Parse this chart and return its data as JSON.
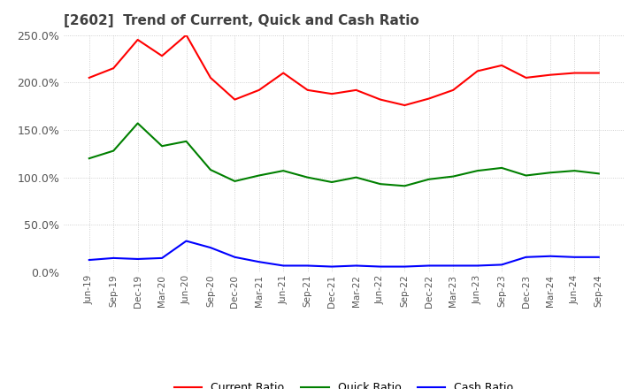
{
  "title": "[2602]  Trend of Current, Quick and Cash Ratio",
  "x_labels": [
    "Jun-19",
    "Sep-19",
    "Dec-19",
    "Mar-20",
    "Jun-20",
    "Sep-20",
    "Dec-20",
    "Mar-21",
    "Jun-21",
    "Sep-21",
    "Dec-21",
    "Mar-22",
    "Jun-22",
    "Sep-22",
    "Dec-22",
    "Mar-23",
    "Jun-23",
    "Sep-23",
    "Dec-23",
    "Mar-24",
    "Jun-24",
    "Sep-24"
  ],
  "current_ratio": [
    205,
    215,
    245,
    228,
    250,
    205,
    182,
    192,
    210,
    192,
    188,
    192,
    182,
    176,
    183,
    192,
    212,
    218,
    205,
    208,
    210,
    210
  ],
  "quick_ratio": [
    120,
    128,
    157,
    133,
    138,
    108,
    96,
    102,
    107,
    100,
    95,
    100,
    93,
    91,
    98,
    101,
    107,
    110,
    102,
    105,
    107,
    104
  ],
  "cash_ratio": [
    13,
    15,
    14,
    15,
    33,
    26,
    16,
    11,
    7,
    7,
    6,
    7,
    6,
    6,
    7,
    7,
    7,
    8,
    16,
    17,
    16,
    16
  ],
  "current_color": "#FF0000",
  "quick_color": "#008000",
  "cash_color": "#0000FF",
  "ylim": [
    0,
    250
  ],
  "yticks": [
    0,
    50,
    100,
    150,
    200,
    250
  ],
  "background_color": "#FFFFFF",
  "plot_bg_color": "#FFFFFF",
  "grid_color": "#AAAAAA",
  "title_color": "#404040",
  "legend_labels": [
    "Current Ratio",
    "Quick Ratio",
    "Cash Ratio"
  ]
}
